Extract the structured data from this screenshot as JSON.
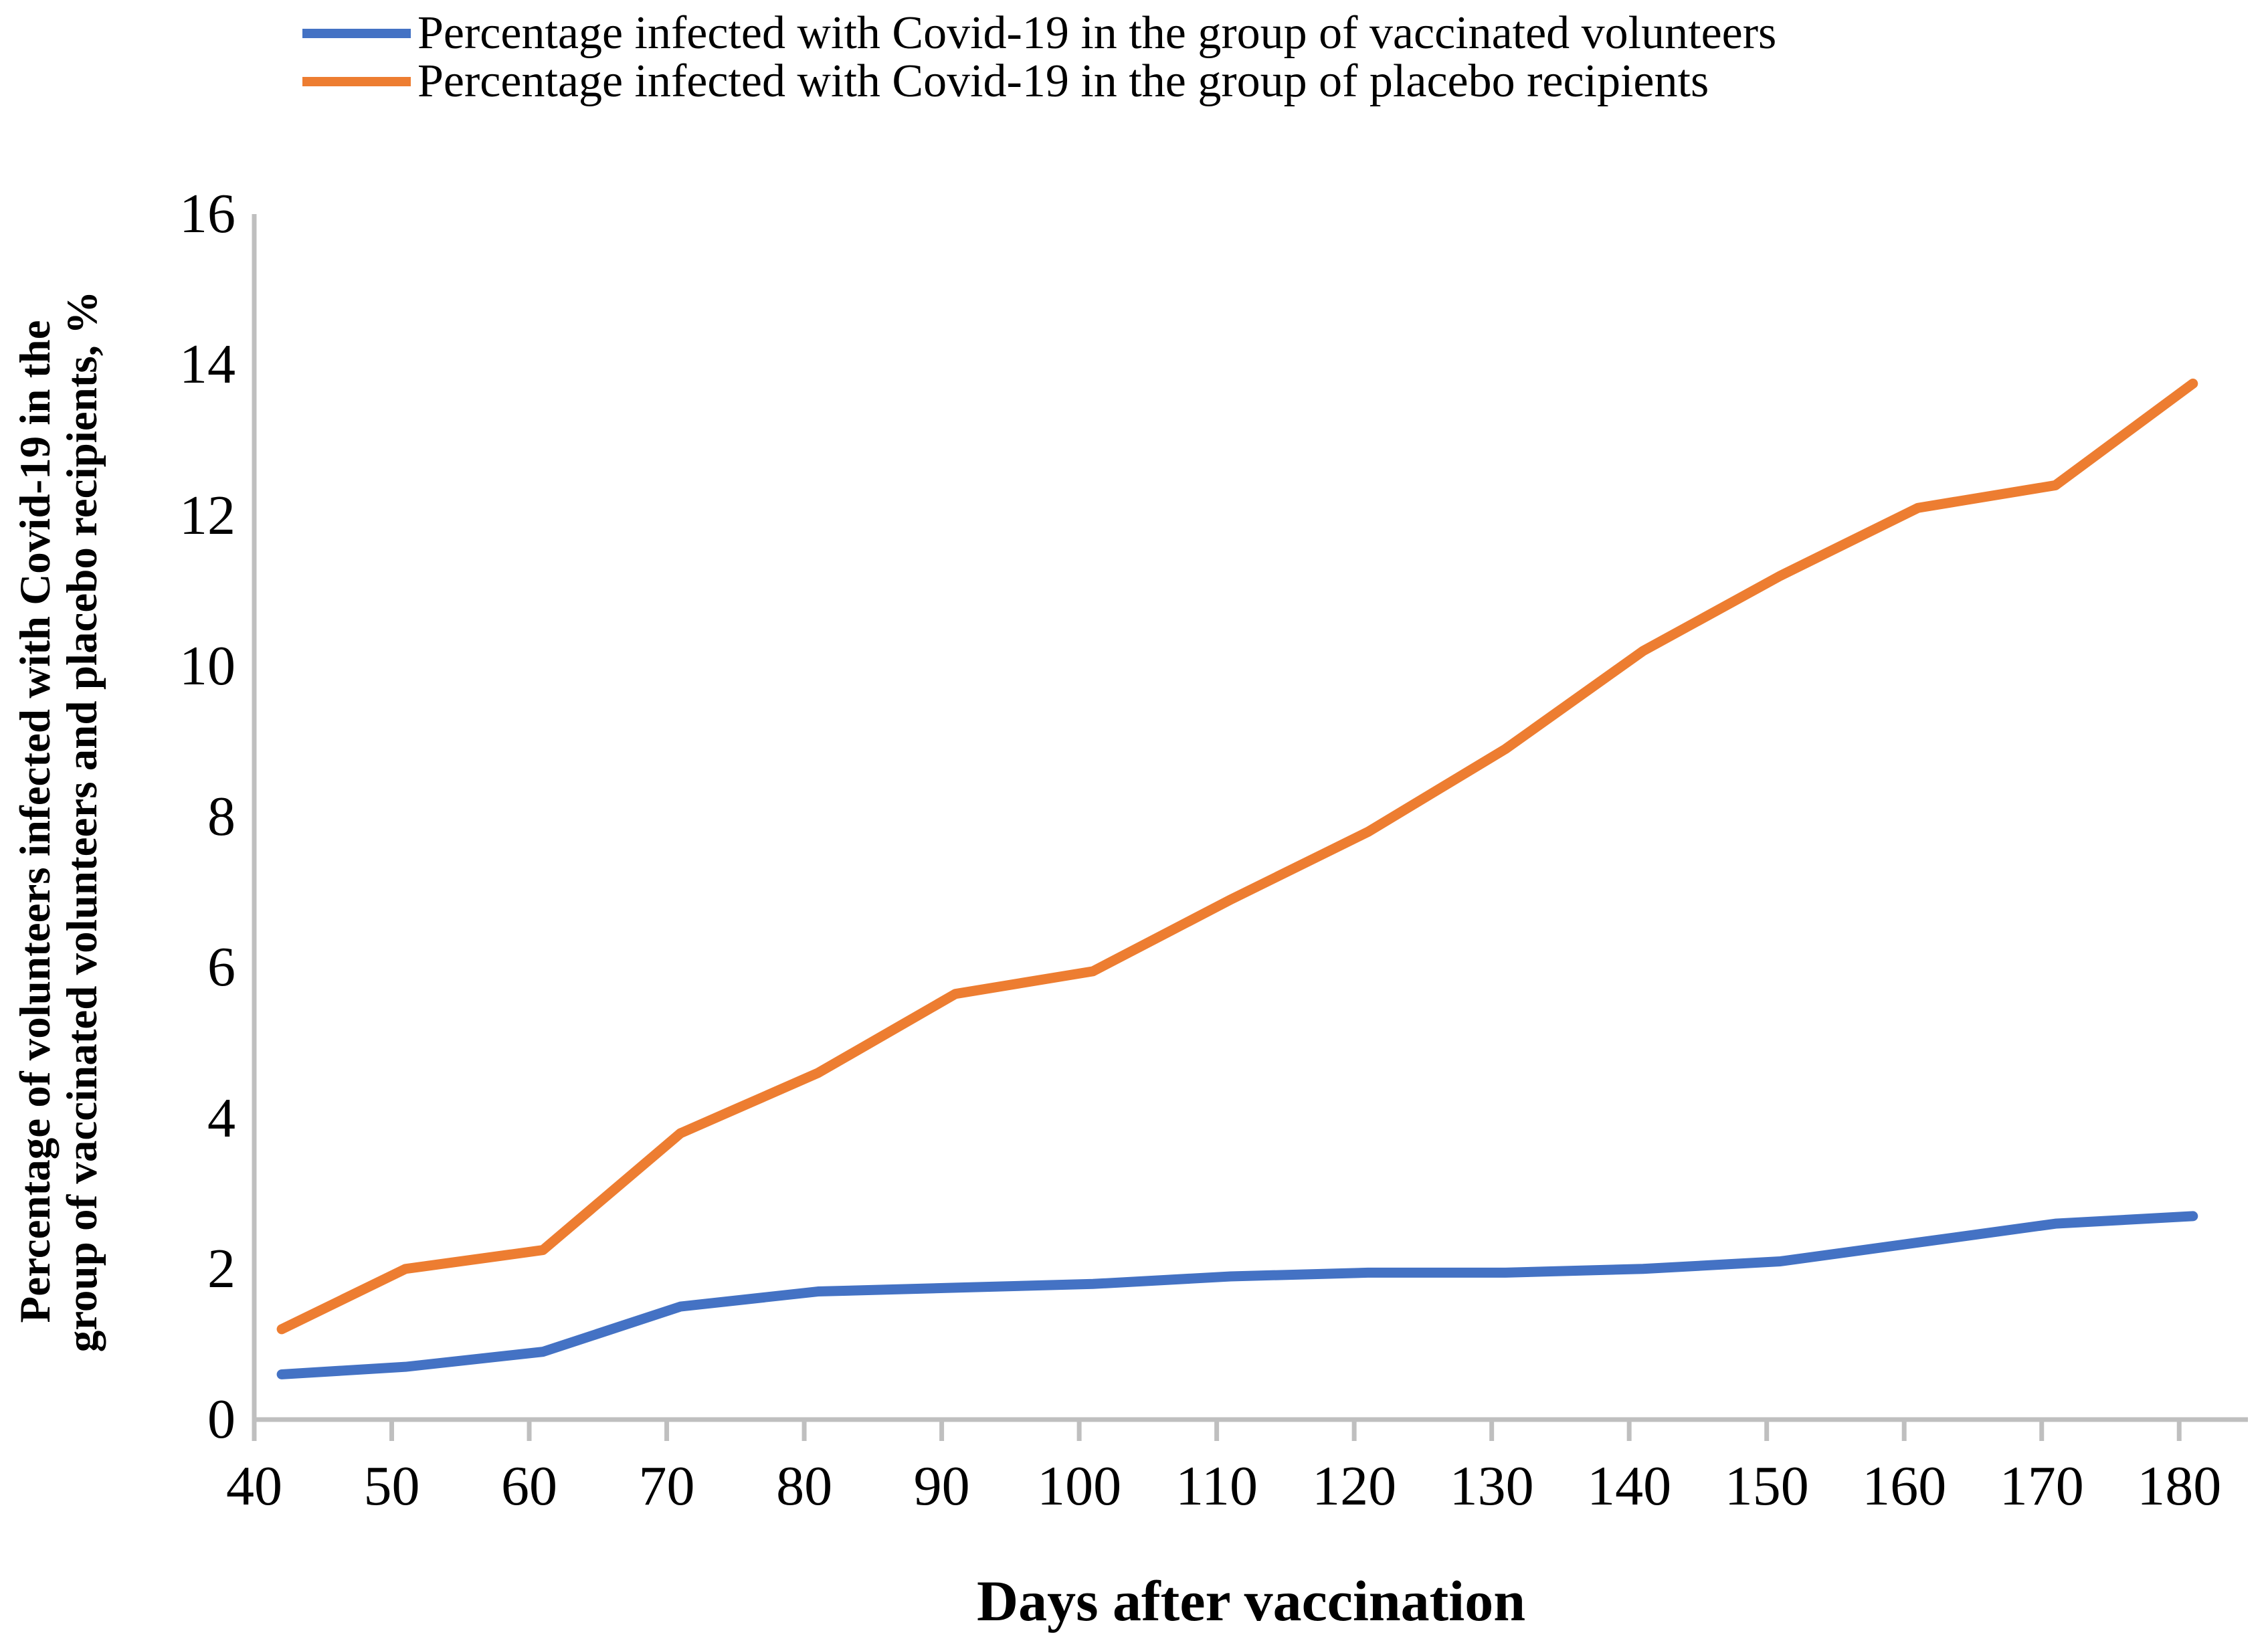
{
  "legend": {
    "items": [
      {
        "label": "Percentage infected with Covid-19 in the group of vaccinated volunteers",
        "color": "#4472C4"
      },
      {
        "label": "Percentage infected with Covid-19 in the group of placebo recipients",
        "color": "#ED7D31"
      }
    ]
  },
  "axes": {
    "x_title": "Days after vaccination",
    "y_title_line1": "Percentage of volunteers infected with Covid-19 in the",
    "y_title_line2": "group of vaccinated volunteers and placebo recipients, %",
    "axis_color": "#BFBFBF",
    "text_color": "#000000"
  },
  "chart_data": {
    "type": "line",
    "title": "",
    "xlabel": "Days after vaccination",
    "ylabel": "Percentage of volunteers infected with Covid-19 in the group of vaccinated volunteers and placebo recipients, %",
    "x": [
      42,
      51,
      61,
      71,
      81,
      91,
      101,
      111,
      121,
      131,
      141,
      151,
      161,
      171,
      181
    ],
    "series": [
      {
        "name": "Percentage infected with Covid-19 in the group of vaccinated volunteers",
        "color": "#4472C4",
        "values": [
          0.6,
          0.7,
          0.9,
          1.5,
          1.7,
          1.75,
          1.8,
          1.9,
          1.95,
          1.95,
          2.0,
          2.1,
          2.35,
          2.6,
          2.7
        ]
      },
      {
        "name": "Percentage infected with Covid-19 in the group of placebo recipients",
        "color": "#ED7D31",
        "values": [
          1.2,
          2.0,
          2.25,
          3.8,
          4.6,
          5.65,
          5.95,
          6.9,
          7.8,
          8.9,
          10.2,
          11.2,
          12.1,
          12.4,
          13.75
        ]
      }
    ],
    "x_ticks": [
      40,
      50,
      60,
      70,
      80,
      90,
      100,
      110,
      120,
      130,
      140,
      150,
      160,
      170,
      180
    ],
    "y_ticks": [
      0,
      2,
      4,
      6,
      8,
      10,
      12,
      14,
      16
    ],
    "xlim": [
      40,
      185
    ],
    "ylim": [
      0,
      16
    ],
    "grid": false,
    "legend_position": "top-left"
  }
}
